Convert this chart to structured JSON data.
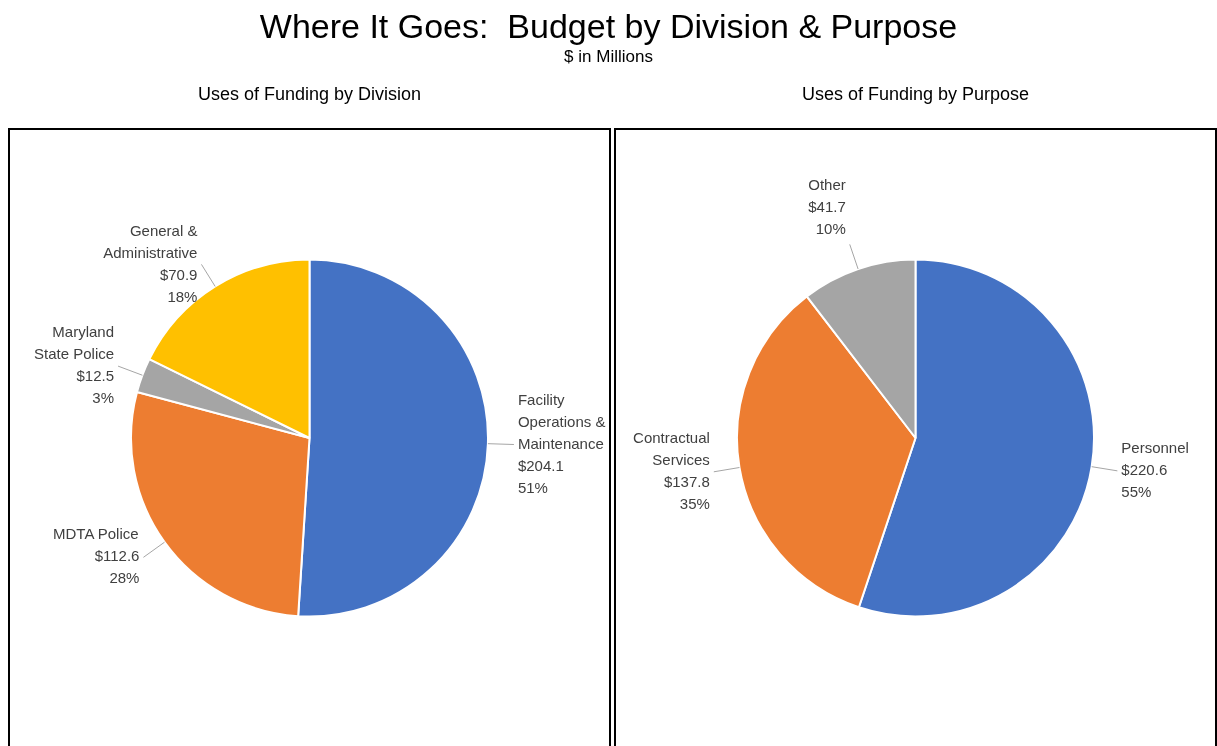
{
  "chart_data": [
    {
      "type": "other",
      "title": "Where It Goes:  Budget by Division & Purpose",
      "subtitle": "$ in Millions"
    },
    {
      "type": "pie",
      "title": "Uses of Funding by Division",
      "categories": [
        "Facility Operations & Maintenance",
        "MDTA Police",
        "Maryland State Police",
        "General & Administrative"
      ],
      "values": [
        204.1,
        112.6,
        12.5,
        70.9
      ],
      "colors": [
        "#4472c4",
        "#ed7d31",
        "#a5a5a5",
        "#ffc000"
      ],
      "value_labels": [
        "$204.1\n51%",
        "$112.6\n28%",
        "$12.5\n3%",
        "$70.9\n18%"
      ],
      "legend": false
    },
    {
      "type": "pie",
      "title": "Uses of Funding by Purpose",
      "categories": [
        "Personnel",
        "Contractual Services",
        "Other"
      ],
      "values": [
        220.6,
        137.8,
        41.7
      ],
      "colors": [
        "#4472c4",
        "#ed7d31",
        "#a5a5a5"
      ],
      "value_labels": [
        "$220.6\n55%",
        "$137.8\n35%",
        "$41.7\n10%"
      ],
      "legend": false
    }
  ]
}
